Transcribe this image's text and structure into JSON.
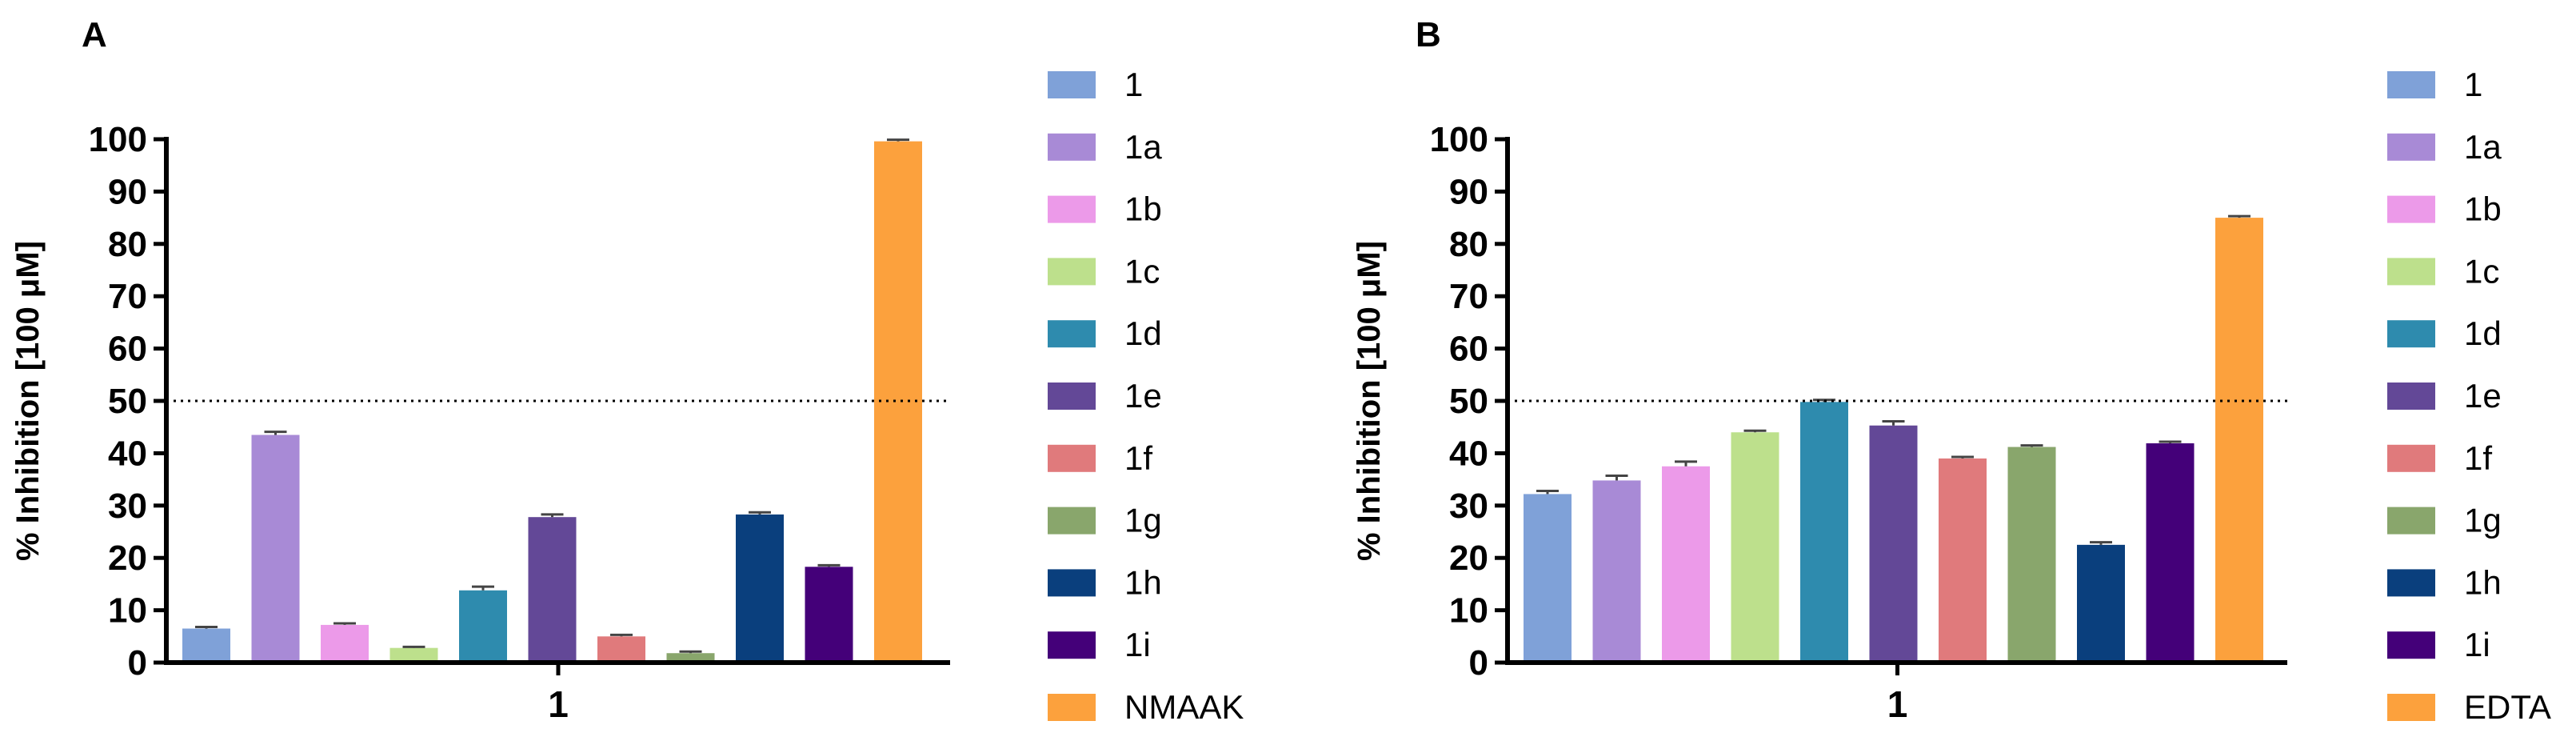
{
  "colors": {
    "1": "#7fa1d8",
    "1a": "#a88ad6",
    "1b": "#ec9ae9",
    "1c": "#bde08c",
    "1d": "#2e8bae",
    "1e": "#634897",
    "1f": "#e07a7c",
    "1g": "#89a66c",
    "1h": "#0a3f7d",
    "1i": "#440079",
    "NMAAK": "#fca13d",
    "EDTA": "#fca13d",
    "reference_line": "#000000",
    "error_bar": "#444444"
  },
  "chart_data": [
    {
      "type": "bar",
      "panel": "A",
      "title": "",
      "xlabel": "1",
      "ylabel": "% Inhibition [100 μM]",
      "ylim": [
        0,
        100
      ],
      "yticks": [
        "0",
        "10",
        "20",
        "30",
        "40",
        "50",
        "60",
        "70",
        "80",
        "90",
        "100"
      ],
      "reference_line": 50,
      "categories": [
        "1"
      ],
      "series": [
        {
          "name": "1",
          "value": 6.5,
          "error": 0.3
        },
        {
          "name": "1a",
          "value": 43.5,
          "error": 0.6
        },
        {
          "name": "1b",
          "value": 7.2,
          "error": 0.3
        },
        {
          "name": "1c",
          "value": 2.8,
          "error": 0.2
        },
        {
          "name": "1d",
          "value": 13.8,
          "error": 0.7
        },
        {
          "name": "1e",
          "value": 27.8,
          "error": 0.5
        },
        {
          "name": "1f",
          "value": 5.0,
          "error": 0.3
        },
        {
          "name": "1g",
          "value": 1.8,
          "error": 0.3
        },
        {
          "name": "1h",
          "value": 28.3,
          "error": 0.4
        },
        {
          "name": "1i",
          "value": 18.3,
          "error": 0.3
        },
        {
          "name": "NMAAK",
          "value": 99.6,
          "error": 0.3
        }
      ],
      "legend": [
        "1",
        "1a",
        "1b",
        "1c",
        "1d",
        "1e",
        "1f",
        "1g",
        "1h",
        "1i",
        "NMAAK"
      ],
      "legend_position": "right"
    },
    {
      "type": "bar",
      "panel": "B",
      "title": "",
      "xlabel": "1",
      "ylabel": "% Inhibition [100 μM]",
      "ylim": [
        0,
        100
      ],
      "yticks": [
        "0",
        "10",
        "20",
        "30",
        "40",
        "50",
        "60",
        "70",
        "80",
        "90",
        "100"
      ],
      "reference_line": 50,
      "categories": [
        "1"
      ],
      "series": [
        {
          "name": "1",
          "value": 32.2,
          "error": 0.6
        },
        {
          "name": "1a",
          "value": 34.8,
          "error": 0.9
        },
        {
          "name": "1b",
          "value": 37.5,
          "error": 0.9
        },
        {
          "name": "1c",
          "value": 44.0,
          "error": 0.3
        },
        {
          "name": "1d",
          "value": 49.8,
          "error": 0.4
        },
        {
          "name": "1e",
          "value": 45.3,
          "error": 0.8
        },
        {
          "name": "1f",
          "value": 39.0,
          "error": 0.3
        },
        {
          "name": "1g",
          "value": 41.2,
          "error": 0.3
        },
        {
          "name": "1h",
          "value": 22.5,
          "error": 0.5
        },
        {
          "name": "1i",
          "value": 41.9,
          "error": 0.3
        },
        {
          "name": "EDTA",
          "value": 85.0,
          "error": 0.3
        }
      ],
      "legend": [
        "1",
        "1a",
        "1b",
        "1c",
        "1d",
        "1e",
        "1f",
        "1g",
        "1h",
        "1i",
        "EDTA"
      ],
      "legend_position": "right"
    }
  ]
}
